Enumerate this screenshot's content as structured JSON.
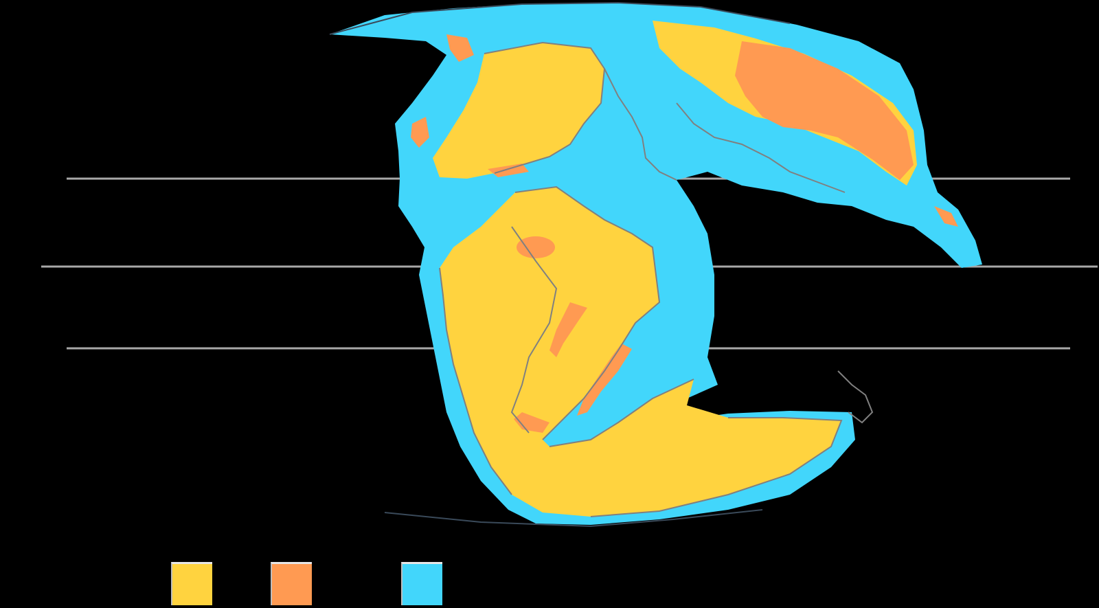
{
  "map": {
    "background": "#000000",
    "colors": {
      "land": "#ffd33f",
      "highland": "#ff9a52",
      "shallow_sea": "#42d6fb",
      "coastline": "#808080",
      "latitude_line": "#a8a8a8",
      "map_edge": "#3a4a5a"
    },
    "latitude_lines": 3,
    "legend": {
      "items": [
        {
          "key": "land",
          "color": "#ffd33f",
          "label": ""
        },
        {
          "key": "highland",
          "color": "#ff9a52",
          "label": ""
        },
        {
          "key": "shallow_sea",
          "color": "#42d6fb",
          "label": ""
        }
      ]
    }
  }
}
